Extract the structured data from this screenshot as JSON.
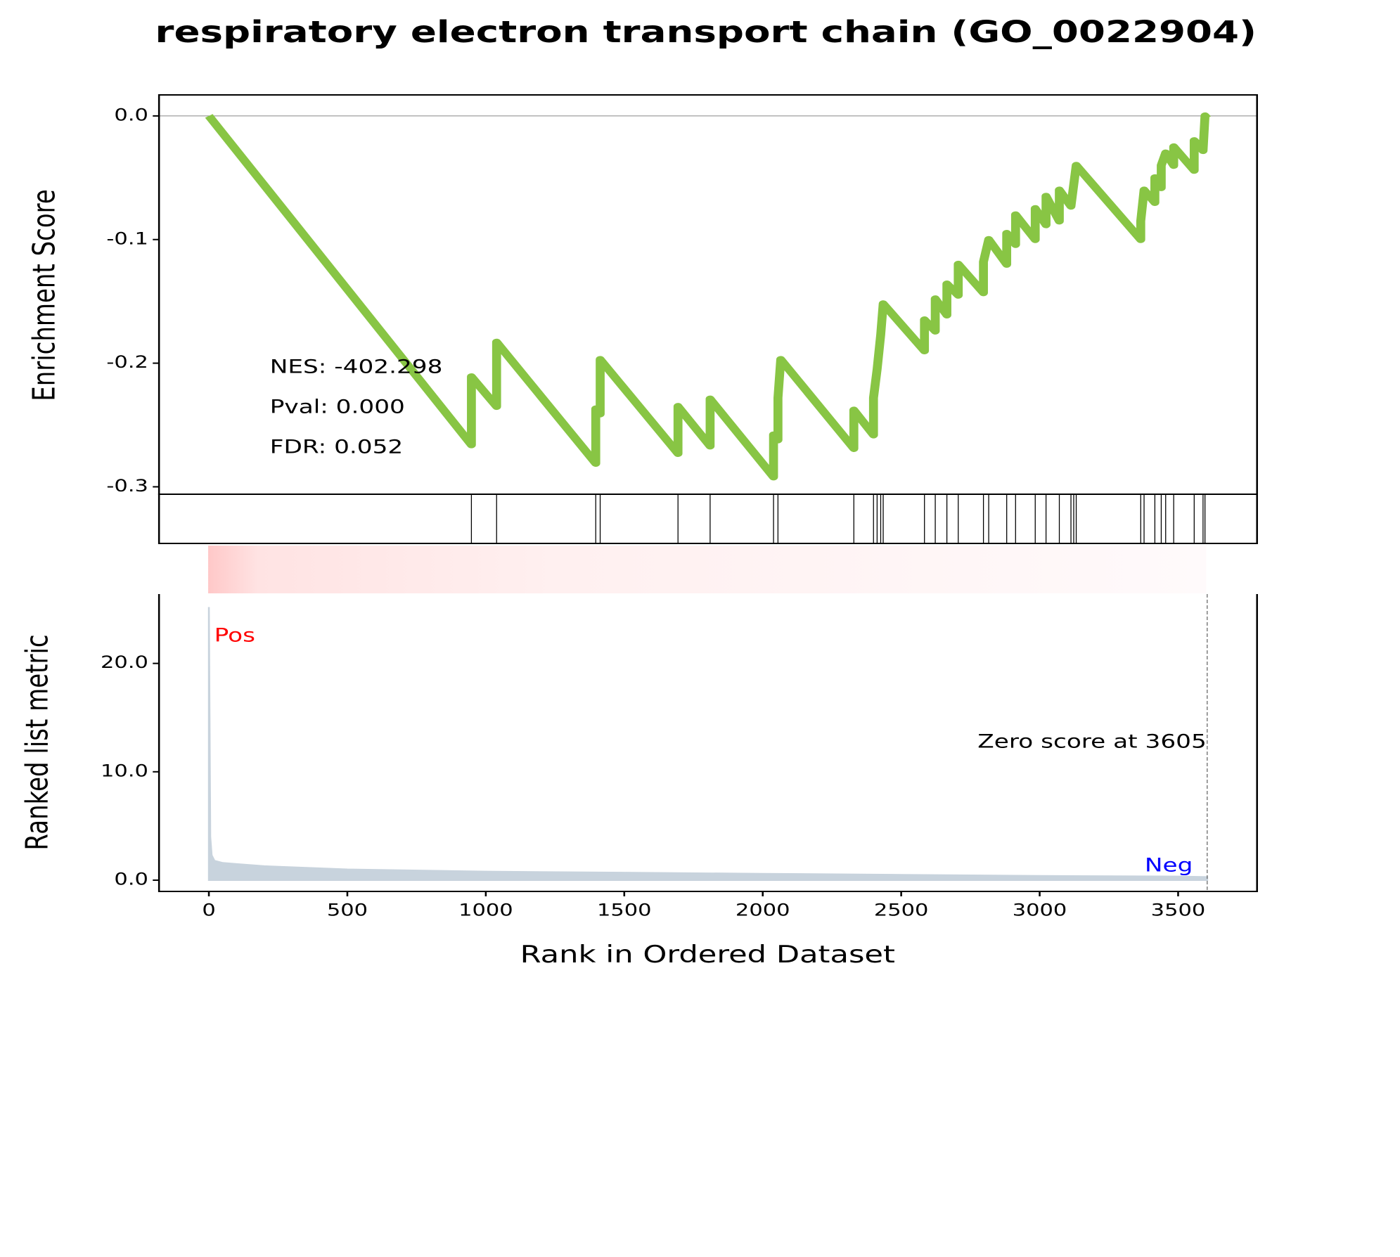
{
  "chart_data": [
    {
      "type": "line",
      "title": "respiratory electron transport chain (GO_0022904)",
      "ylabel": "Enrichment Score",
      "annotations": [
        "NES: -402.298",
        "Pval: 0.000",
        "FDR: 0.052"
      ],
      "color": "#88c544",
      "xlim": [
        -180,
        3785
      ],
      "ylim": [
        -0.306,
        0.017
      ],
      "yticks": [
        {
          "value": 0,
          "label": "0.0"
        },
        {
          "value": -0.1,
          "label": "-0.1"
        },
        {
          "value": -0.2,
          "label": "-0.2"
        },
        {
          "value": -0.3,
          "label": "-0.3"
        }
      ],
      "x": [
        0,
        948,
        948,
        1039,
        1039,
        1397,
        1397,
        1413,
        1413,
        1694,
        1694,
        1810,
        1810,
        2039,
        2039,
        2055,
        2055,
        2065,
        2329,
        2329,
        2400,
        2400,
        2413,
        2426,
        2435,
        2584,
        2584,
        2623,
        2623,
        2665,
        2665,
        2706,
        2706,
        2797,
        2797,
        2816,
        2881,
        2881,
        2913,
        2913,
        2984,
        2984,
        3023,
        3023,
        3071,
        3071,
        3113,
        3132,
        3365,
        3365,
        3377,
        3416,
        3416,
        3439,
        3439,
        3455,
        3484,
        3484,
        3558,
        3558,
        3590,
        3597,
        3605
      ],
      "values": [
        0,
        -0.266,
        -0.211,
        -0.235,
        -0.183,
        -0.281,
        -0.237,
        -0.241,
        -0.197,
        -0.273,
        -0.235,
        -0.267,
        -0.229,
        -0.292,
        -0.258,
        -0.262,
        -0.228,
        -0.197,
        -0.269,
        -0.238,
        -0.258,
        -0.228,
        -0.205,
        -0.177,
        -0.152,
        -0.19,
        -0.165,
        -0.174,
        -0.148,
        -0.161,
        -0.136,
        -0.145,
        -0.12,
        -0.143,
        -0.118,
        -0.1,
        -0.12,
        -0.095,
        -0.104,
        -0.08,
        -0.1,
        -0.075,
        -0.088,
        -0.065,
        -0.085,
        -0.06,
        -0.073,
        -0.04,
        -0.1,
        -0.085,
        -0.06,
        -0.07,
        -0.05,
        -0.058,
        -0.04,
        -0.03,
        -0.04,
        -0.025,
        -0.044,
        -0.02,
        -0.028,
        0,
        -0.002
      ]
    },
    {
      "type": "rug",
      "xlim": [
        -180,
        3785
      ],
      "x": [
        948,
        1039,
        1397,
        1413,
        1694,
        1810,
        2039,
        2055,
        2329,
        2400,
        2413,
        2426,
        2435,
        2584,
        2623,
        2665,
        2706,
        2797,
        2816,
        2881,
        2913,
        2984,
        3023,
        3071,
        3113,
        3123,
        3132,
        3365,
        3377,
        3416,
        3439,
        3455,
        3484,
        3558,
        3590,
        3597
      ]
    },
    {
      "type": "area",
      "xlabel": "Rank in Ordered Dataset",
      "ylabel": "Ranked list metric",
      "color": "#c8d3dd",
      "xlim": [
        -180,
        3785
      ],
      "ylim": [
        -1.04,
        26.4
      ],
      "xticks": [
        0,
        500,
        1000,
        1500,
        2000,
        2500,
        3000,
        3500
      ],
      "yticks": [
        {
          "value": 0,
          "label": "0.0"
        },
        {
          "value": 10,
          "label": "10.0"
        },
        {
          "value": 20,
          "label": "20.0"
        }
      ],
      "x": [
        0,
        5,
        10,
        20,
        50,
        100,
        200,
        500,
        1000,
        1500,
        2000,
        2500,
        3000,
        3500,
        3605
      ],
      "values": [
        25.2,
        4,
        2.3,
        1.8,
        1.6,
        1.5,
        1.3,
        1.0,
        0.8,
        0.7,
        0.6,
        0.5,
        0.4,
        0.35,
        0.3
      ],
      "pos_label": "Pos",
      "neg_label": "Neg",
      "zero_rank": 3605,
      "zero_label": "Zero score at 3605"
    }
  ]
}
